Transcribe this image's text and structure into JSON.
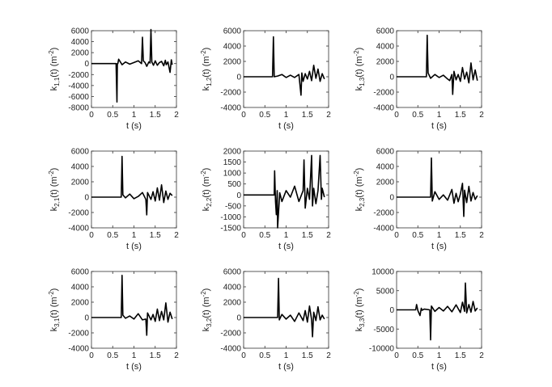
{
  "chart_data": [
    {
      "type": "line",
      "xlabel": "t (s)",
      "ylabel_main": "k",
      "ylabel_sub": "1,1",
      "ylabel_rest": "(t) (m",
      "ylabel_exp": "-2",
      "ylabel_close": ")",
      "xlim": [
        0,
        2
      ],
      "ylim": [
        -8000,
        6000
      ],
      "xticks": [
        0,
        0.5,
        1,
        1.5,
        2
      ],
      "yticks": [
        -8000,
        -6000,
        -4000,
        -2000,
        0,
        2000,
        4000,
        6000
      ],
      "series": [
        {
          "x": [
            0,
            0.58,
            0.6,
            0.61,
            0.62,
            0.64,
            0.68,
            0.72,
            0.8,
            0.9,
            1.0,
            1.1,
            1.18,
            1.2,
            1.22,
            1.26,
            1.3,
            1.35,
            1.38,
            1.4,
            1.42,
            1.46,
            1.5,
            1.55,
            1.6,
            1.65,
            1.7,
            1.74,
            1.76,
            1.8,
            1.85,
            1.88,
            1.9
          ],
          "y": [
            0,
            0,
            -7000,
            0,
            0,
            800,
            300,
            -200,
            300,
            -100,
            200,
            500,
            0,
            4800,
            500,
            200,
            -500,
            300,
            100,
            6200,
            300,
            -300,
            500,
            -300,
            200,
            400,
            -400,
            600,
            -200,
            300,
            -1600,
            700,
            -200
          ]
        }
      ]
    },
    {
      "type": "line",
      "xlabel": "t (s)",
      "ylabel_main": "k",
      "ylabel_sub": "1,2",
      "ylabel_rest": "(t) (m",
      "ylabel_exp": "-2",
      "ylabel_close": ")",
      "xlim": [
        0,
        2
      ],
      "ylim": [
        -4000,
        6000
      ],
      "xticks": [
        0,
        0.5,
        1,
        1.5,
        2
      ],
      "yticks": [
        -4000,
        -2000,
        0,
        2000,
        4000,
        6000
      ],
      "series": [
        {
          "x": [
            0,
            0.68,
            0.7,
            0.72,
            0.8,
            0.9,
            1.0,
            1.1,
            1.2,
            1.3,
            1.35,
            1.37,
            1.4,
            1.45,
            1.5,
            1.55,
            1.6,
            1.65,
            1.7,
            1.75,
            1.8,
            1.85,
            1.9
          ],
          "y": [
            0,
            0,
            5200,
            0,
            100,
            300,
            -100,
            200,
            -100,
            300,
            -2400,
            500,
            -600,
            400,
            -300,
            700,
            -500,
            1500,
            -200,
            1000,
            -600,
            400,
            -300
          ]
        }
      ]
    },
    {
      "type": "line",
      "xlabel": "t (s)",
      "ylabel_main": "k",
      "ylabel_sub": "1,3",
      "ylabel_rest": "(t) (m",
      "ylabel_exp": "-2",
      "ylabel_close": ")",
      "xlim": [
        0,
        2
      ],
      "ylim": [
        -4000,
        6000
      ],
      "xticks": [
        0,
        0.5,
        1,
        1.5,
        2
      ],
      "yticks": [
        -4000,
        -2000,
        0,
        2000,
        4000,
        6000
      ],
      "series": [
        {
          "x": [
            0,
            0.7,
            0.72,
            0.74,
            0.8,
            0.9,
            1.0,
            1.1,
            1.2,
            1.25,
            1.3,
            1.32,
            1.35,
            1.4,
            1.45,
            1.5,
            1.55,
            1.6,
            1.65,
            1.7,
            1.75,
            1.8,
            1.85,
            1.9
          ],
          "y": [
            0,
            0,
            5400,
            500,
            -200,
            300,
            -100,
            200,
            -300,
            -500,
            300,
            -2300,
            700,
            -400,
            300,
            -600,
            1200,
            -300,
            600,
            -800,
            1800,
            -400,
            900,
            -500
          ]
        }
      ]
    },
    {
      "type": "line",
      "xlabel": "t (s)",
      "ylabel_main": "k",
      "ylabel_sub": "2,1",
      "ylabel_rest": "(t) (m",
      "ylabel_exp": "-2",
      "ylabel_close": ")",
      "xlim": [
        0,
        2
      ],
      "ylim": [
        -4000,
        6000
      ],
      "xticks": [
        0,
        0.5,
        1,
        1.5,
        2
      ],
      "yticks": [
        -4000,
        -2000,
        0,
        2000,
        4000,
        6000
      ],
      "series": [
        {
          "x": [
            0,
            0.7,
            0.72,
            0.74,
            0.8,
            0.9,
            1.0,
            1.1,
            1.2,
            1.28,
            1.3,
            1.32,
            1.4,
            1.45,
            1.5,
            1.55,
            1.6,
            1.65,
            1.7,
            1.75,
            1.8,
            1.85,
            1.9
          ],
          "y": [
            0,
            0,
            5300,
            300,
            -100,
            400,
            -200,
            100,
            600,
            -300,
            -2300,
            600,
            -300,
            700,
            -500,
            1200,
            -400,
            1600,
            -700,
            800,
            -300,
            500,
            200
          ]
        }
      ]
    },
    {
      "type": "line",
      "xlabel": "t (s)",
      "ylabel_main": "k",
      "ylabel_sub": "2,2",
      "ylabel_rest": "(t) (m",
      "ylabel_exp": "-2",
      "ylabel_close": ")",
      "xlim": [
        0,
        2
      ],
      "ylim": [
        -1500,
        2000
      ],
      "xticks": [
        0,
        0.5,
        1,
        1.5,
        2
      ],
      "yticks": [
        -1500,
        -1000,
        -500,
        0,
        500,
        1000,
        1500,
        2000
      ],
      "series": [
        {
          "x": [
            0,
            0.72,
            0.73,
            0.75,
            0.77,
            0.79,
            0.8,
            0.85,
            0.9,
            1.0,
            1.1,
            1.2,
            1.3,
            1.4,
            1.42,
            1.45,
            1.5,
            1.55,
            1.6,
            1.62,
            1.65,
            1.7,
            1.75,
            1.8,
            1.83,
            1.85,
            1.9
          ],
          "y": [
            0,
            0,
            1100,
            -300,
            -900,
            200,
            -1500,
            100,
            -300,
            200,
            -100,
            400,
            -300,
            200,
            1600,
            -600,
            300,
            -200,
            1800,
            -500,
            300,
            -400,
            200,
            1800,
            -200,
            300,
            -100
          ]
        }
      ]
    },
    {
      "type": "line",
      "xlabel": "t (s)",
      "ylabel_main": "k",
      "ylabel_sub": "2,3",
      "ylabel_rest": "(t) (m",
      "ylabel_exp": "-2",
      "ylabel_close": ")",
      "xlim": [
        0,
        2
      ],
      "ylim": [
        -4000,
        6000
      ],
      "xticks": [
        0,
        0.5,
        1,
        1.5,
        2
      ],
      "yticks": [
        -4000,
        -2000,
        0,
        2000,
        4000,
        6000
      ],
      "series": [
        {
          "x": [
            0,
            0.8,
            0.82,
            0.84,
            0.9,
            1.0,
            1.1,
            1.2,
            1.3,
            1.35,
            1.4,
            1.45,
            1.5,
            1.55,
            1.58,
            1.6,
            1.65,
            1.7,
            1.75,
            1.8,
            1.85,
            1.9
          ],
          "y": [
            0,
            0,
            5100,
            -500,
            700,
            -300,
            300,
            -400,
            1000,
            -800,
            500,
            -600,
            400,
            1800,
            -2500,
            900,
            -700,
            1400,
            -500,
            600,
            -300,
            200
          ]
        }
      ]
    },
    {
      "type": "line",
      "xlabel": "t (s)",
      "ylabel_main": "k",
      "ylabel_sub": "3,1",
      "ylabel_rest": "(t) (m",
      "ylabel_exp": "-2",
      "ylabel_close": ")",
      "xlim": [
        0,
        2
      ],
      "ylim": [
        -4000,
        6000
      ],
      "xticks": [
        0,
        0.5,
        1,
        1.5,
        2
      ],
      "yticks": [
        -4000,
        -2000,
        0,
        2000,
        4000,
        6000
      ],
      "series": [
        {
          "x": [
            0,
            0.7,
            0.72,
            0.74,
            0.8,
            0.9,
            1.0,
            1.1,
            1.2,
            1.28,
            1.3,
            1.32,
            1.4,
            1.45,
            1.5,
            1.55,
            1.6,
            1.65,
            1.7,
            1.75,
            1.8,
            1.85,
            1.9
          ],
          "y": [
            0,
            0,
            5500,
            300,
            -100,
            200,
            -200,
            500,
            -300,
            -200,
            -2300,
            600,
            -300,
            400,
            -500,
            1100,
            -400,
            800,
            -300,
            1900,
            -600,
            700,
            -200
          ]
        }
      ]
    },
    {
      "type": "line",
      "xlabel": "t (s)",
      "ylabel_main": "k",
      "ylabel_sub": "3,2",
      "ylabel_rest": "(t) (m",
      "ylabel_exp": "-2",
      "ylabel_close": ")",
      "xlim": [
        0,
        2
      ],
      "ylim": [
        -4000,
        6000
      ],
      "xticks": [
        0,
        0.5,
        1,
        1.5,
        2
      ],
      "yticks": [
        -4000,
        -2000,
        0,
        2000,
        4000,
        6000
      ],
      "series": [
        {
          "x": [
            0,
            0.8,
            0.82,
            0.84,
            0.9,
            1.0,
            1.1,
            1.2,
            1.3,
            1.4,
            1.45,
            1.5,
            1.55,
            1.6,
            1.62,
            1.65,
            1.7,
            1.75,
            1.8,
            1.85,
            1.9
          ],
          "y": [
            0,
            0,
            5100,
            -300,
            400,
            -200,
            300,
            -500,
            600,
            -400,
            900,
            -600,
            1500,
            -300,
            -2500,
            700,
            -400,
            1400,
            -300,
            300,
            -200
          ]
        }
      ]
    },
    {
      "type": "line",
      "xlabel": "t (s)",
      "ylabel_main": "k",
      "ylabel_sub": "3,3",
      "ylabel_rest": "(t) (m",
      "ylabel_exp": "-2",
      "ylabel_close": ")",
      "xlim": [
        0,
        2
      ],
      "ylim": [
        -10000,
        10000
      ],
      "xticks": [
        0,
        0.5,
        1,
        1.5,
        2
      ],
      "yticks": [
        -10000,
        -5000,
        0,
        5000,
        10000
      ],
      "series": [
        {
          "x": [
            0,
            0.45,
            0.47,
            0.5,
            0.55,
            0.58,
            0.6,
            0.65,
            0.78,
            0.8,
            0.82,
            0.9,
            1.0,
            1.1,
            1.2,
            1.3,
            1.4,
            1.5,
            1.55,
            1.6,
            1.62,
            1.65,
            1.7,
            1.75,
            1.8,
            1.85,
            1.9
          ],
          "y": [
            0,
            0,
            1400,
            -200,
            -1500,
            400,
            -100,
            200,
            0,
            -7800,
            1000,
            -400,
            600,
            -300,
            900,
            -500,
            1300,
            -700,
            2000,
            -400,
            7000,
            -800,
            1400,
            -600,
            2200,
            -300,
            500
          ]
        }
      ]
    }
  ]
}
